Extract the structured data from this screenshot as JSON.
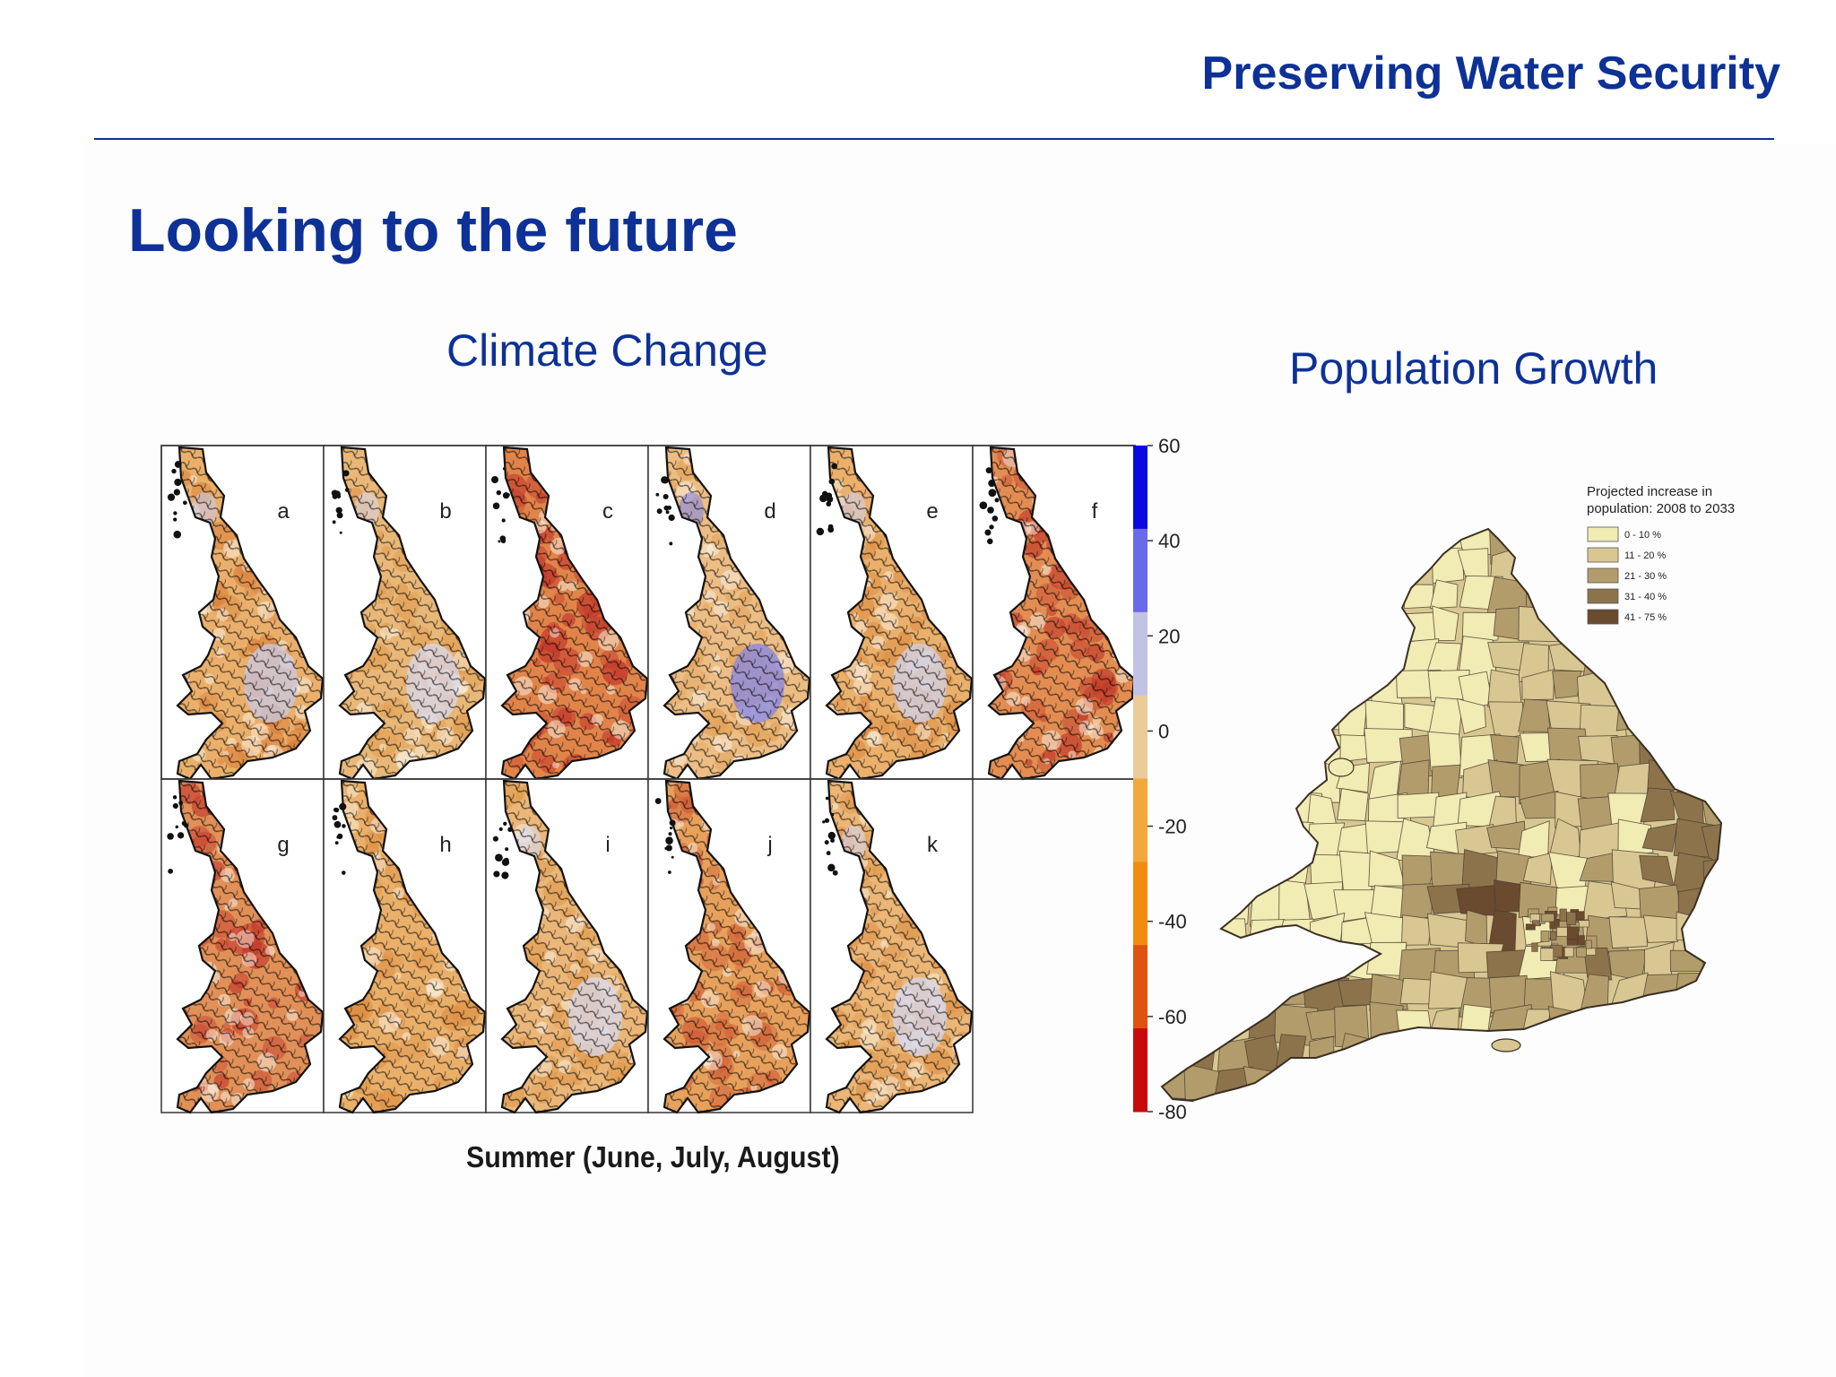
{
  "slide": {
    "header_title": "Preserving Water Security",
    "title": "Looking to the future"
  },
  "climate_change": {
    "title": "Climate Change",
    "caption": "Summer (June, July, August)",
    "panels": [
      {
        "label": "a",
        "tone": "#eab06b",
        "dark": "#d97f3a",
        "extra": "#c9c9e6"
      },
      {
        "label": "b",
        "tone": "#e9b878",
        "dark": "#e19a4c",
        "extra": "#d8d8ee"
      },
      {
        "label": "c",
        "tone": "#e1844a",
        "dark": "#c0352a",
        "extra": ""
      },
      {
        "label": "d",
        "tone": "#ecbd84",
        "dark": "#e2a35a",
        "extra": "#8585e4"
      },
      {
        "label": "e",
        "tone": "#eab06c",
        "dark": "#dd8d44",
        "extra": "#d0d0ea"
      },
      {
        "label": "f",
        "tone": "#e38d52",
        "dark": "#c03a2a",
        "extra": ""
      },
      {
        "label": "g",
        "tone": "#e19058",
        "dark": "#c43a2c",
        "extra": ""
      },
      {
        "label": "h",
        "tone": "#eab06a",
        "dark": "#de9146",
        "extra": ""
      },
      {
        "label": "i",
        "tone": "#ebb779",
        "dark": "#e09c50",
        "extra": "#d8d8ee"
      },
      {
        "label": "j",
        "tone": "#e7a15c",
        "dark": "#cd5a34",
        "extra": ""
      },
      {
        "label": "k",
        "tone": "#ebb676",
        "dark": "#dd9248",
        "extra": "#d4d4ec"
      }
    ],
    "colorbar": {
      "ticks": [
        "60",
        "40",
        "20",
        "0",
        "-20",
        "-40",
        "-60",
        "-80"
      ],
      "segments": [
        "#0a0ae0",
        "#6a6ae8",
        "#c2c2e4",
        "#ecca9a",
        "#f2a83c",
        "#f28c10",
        "#e05210",
        "#c80a0a"
      ]
    }
  },
  "population_growth": {
    "title": "Population Growth",
    "legend": {
      "title_line1": "Projected increase in",
      "title_line2": "population: 2008 to 2033",
      "items": [
        {
          "label": "0 - 10 %",
          "color": "#f1ebb4"
        },
        {
          "label": "11 - 20 %",
          "color": "#d8c792"
        },
        {
          "label": "21 - 30 %",
          "color": "#b39c6c"
        },
        {
          "label": "31 - 40 %",
          "color": "#8d734c"
        },
        {
          "label": "41 - 75 %",
          "color": "#6a4b30"
        }
      ]
    }
  }
}
